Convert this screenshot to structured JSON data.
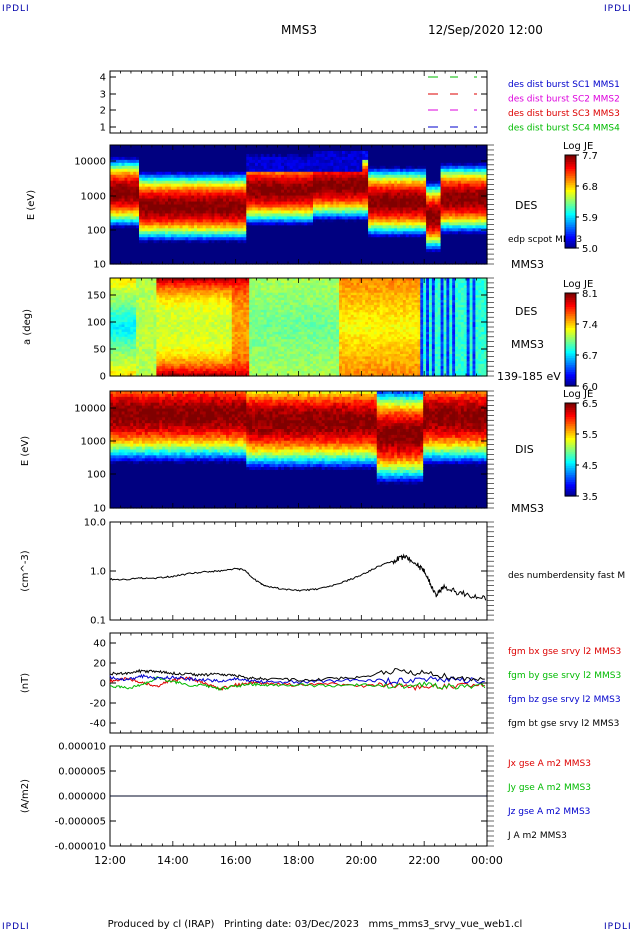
{
  "corner_label": "IPDLI",
  "header": {
    "spacecraft": "MMS3",
    "datetime": "12/Sep/2020 12:00"
  },
  "footer": {
    "text": "Produced by cl (IRAP)   Printing date: 03/Dec/2023   mms_mms3_srvy_vue_web1.cl"
  },
  "colors": {
    "red": "#dd0000",
    "green": "#00bb00",
    "blue": "#0000cc",
    "magenta": "#dd00dd",
    "black": "#000000"
  },
  "time_axis": {
    "ticks": [
      "12:00",
      "14:00",
      "16:00",
      "18:00",
      "20:00",
      "22:00",
      "00:00"
    ]
  },
  "chart_data": [
    {
      "type": "line",
      "panel": "burst",
      "yticks": [
        "4",
        "3",
        "2",
        "1"
      ],
      "ylim": [
        0.5,
        4.5
      ],
      "series": [
        {
          "name": "des dist burst SC1 MMS1",
          "color": "#0000cc",
          "level": 1
        },
        {
          "name": "des dist burst SC2 MMS2",
          "color": "#dd00dd",
          "level": 2
        },
        {
          "name": "des dist burst SC3 MMS3",
          "color": "#dd0000",
          "level": 3
        },
        {
          "name": "des dist burst SC4 MMS4",
          "color": "#00bb00",
          "level": 4
        }
      ]
    },
    {
      "type": "heatmap",
      "panel": "des-energy",
      "ylabel": "E (eV)",
      "yticks": [
        "10000",
        "1000",
        "100",
        "10"
      ],
      "scale": "log",
      "right_labels": [
        "DES",
        "edp scpot MMS3",
        "MMS3"
      ],
      "colorbar": {
        "title": "Log JE",
        "ticks": [
          "7.7",
          "6.8",
          "5.9",
          "5.0"
        ],
        "range": [
          5.0,
          7.7
        ]
      }
    },
    {
      "type": "heatmap",
      "panel": "des-pitch",
      "ylabel": "a (deg)",
      "yticks": [
        "150",
        "100",
        "50",
        "0"
      ],
      "ylim": [
        0,
        180
      ],
      "right_labels": [
        "DES",
        "MMS3",
        "139-185 eV"
      ],
      "colorbar": {
        "title": "Log JE",
        "ticks": [
          "8.1",
          "7.4",
          "6.7",
          "6.0"
        ],
        "range": [
          6.0,
          8.1
        ]
      }
    },
    {
      "type": "heatmap",
      "panel": "dis-energy",
      "ylabel": "E (eV)",
      "yticks": [
        "10000",
        "1000",
        "100",
        "10"
      ],
      "scale": "log",
      "right_labels": [
        "DIS",
        "MMS3"
      ],
      "colorbar": {
        "title": "Log JE",
        "ticks": [
          "6.5",
          "5.5",
          "4.5",
          "3.5"
        ],
        "range": [
          3.5,
          6.5
        ]
      }
    },
    {
      "type": "line",
      "panel": "density",
      "ylabel": "(cm^-3)",
      "yticks": [
        "10.0",
        "1.0",
        "0.1"
      ],
      "scale": "log",
      "series": [
        {
          "name": "des numberdensity fast M",
          "color": "#000000",
          "x": [
            12.0,
            12.5,
            13.0,
            13.5,
            14.0,
            14.5,
            15.0,
            15.5,
            16.0,
            16.3,
            16.5,
            16.8,
            17.0,
            17.5,
            18.0,
            18.5,
            19.0,
            19.5,
            20.0,
            20.5,
            21.0,
            21.3,
            21.5,
            21.8,
            22.0,
            22.2,
            22.4,
            22.6,
            23.0,
            23.5,
            24.0
          ],
          "y": [
            0.68,
            0.66,
            0.72,
            0.72,
            0.78,
            0.88,
            0.96,
            1.0,
            1.12,
            1.05,
            0.75,
            0.55,
            0.48,
            0.43,
            0.4,
            0.42,
            0.48,
            0.62,
            0.82,
            1.2,
            1.6,
            1.9,
            1.8,
            1.3,
            1.0,
            0.55,
            0.32,
            0.48,
            0.38,
            0.32,
            0.26
          ]
        }
      ]
    },
    {
      "type": "line",
      "panel": "fgm",
      "ylabel": "(nT)",
      "yticks": [
        "40",
        "20",
        "0",
        "-20",
        "-40"
      ],
      "ylim": [
        -50,
        50
      ],
      "series": [
        {
          "name": "fgm bx gse srvy l2 MMS3",
          "color": "#dd0000",
          "x": [
            12,
            12.5,
            13,
            13.5,
            14,
            14.5,
            15,
            15.5,
            16,
            16.5,
            17,
            18,
            19,
            20,
            21,
            22,
            23,
            24
          ],
          "y": [
            2,
            4,
            1,
            -3,
            3,
            5,
            0,
            -6,
            -2,
            0,
            -1,
            -2,
            -1,
            -3,
            -2,
            -5,
            -3,
            -2
          ]
        },
        {
          "name": "fgm by gse srvy l2 MMS3",
          "color": "#00bb00",
          "x": [
            12,
            12.5,
            13,
            13.5,
            14,
            14.5,
            15,
            15.5,
            16,
            16.5,
            17,
            18,
            19,
            20,
            21,
            22,
            23,
            24
          ],
          "y": [
            -3,
            -5,
            -2,
            5,
            2,
            -3,
            -2,
            -6,
            -3,
            -1,
            -2,
            -2,
            -3,
            -2,
            -3,
            -2,
            -4,
            -3
          ]
        },
        {
          "name": "fgm bz gse srvy l2 MMS3",
          "color": "#0000cc",
          "x": [
            12,
            12.5,
            13,
            13.5,
            14,
            14.5,
            15,
            15.5,
            16,
            16.5,
            17,
            18,
            19,
            20,
            21,
            22,
            23,
            24
          ],
          "y": [
            6,
            3,
            7,
            4,
            6,
            4,
            3,
            2,
            4,
            2,
            1,
            1,
            2,
            3,
            2,
            4,
            3,
            2
          ]
        },
        {
          "name": "fgm bt gse srvy l2 MMS3",
          "color": "#000000",
          "x": [
            12,
            12.5,
            13,
            13.5,
            14,
            14.5,
            15,
            15.5,
            16,
            16.5,
            17,
            18,
            19,
            20,
            21,
            22,
            23,
            24
          ],
          "y": [
            9,
            10,
            12,
            11,
            10,
            9,
            8,
            9,
            7,
            5,
            4,
            3,
            4,
            6,
            12,
            10,
            5,
            4
          ]
        }
      ]
    },
    {
      "type": "line",
      "panel": "current",
      "ylabel": "(A/m2)",
      "yticks": [
        "0.000010",
        "0.000005",
        "0.000000",
        "-0.000005",
        "-0.000010"
      ],
      "ylim": [
        -1e-05,
        1e-05
      ],
      "series": [
        {
          "name": "Jx gse A m2 MMS3",
          "color": "#dd0000",
          "x": [
            12,
            24
          ],
          "y": [
            0,
            0
          ]
        },
        {
          "name": "Jy gse A m2 MMS3",
          "color": "#00bb00",
          "x": [
            12,
            24
          ],
          "y": [
            0,
            0
          ]
        },
        {
          "name": "Jz gse A m2 MMS3",
          "color": "#0000cc",
          "x": [
            12,
            24
          ],
          "y": [
            0,
            0
          ]
        },
        {
          "name": "J A m2 MMS3",
          "color": "#000000",
          "x": [
            12,
            24
          ],
          "y": [
            0,
            0
          ]
        }
      ]
    }
  ]
}
